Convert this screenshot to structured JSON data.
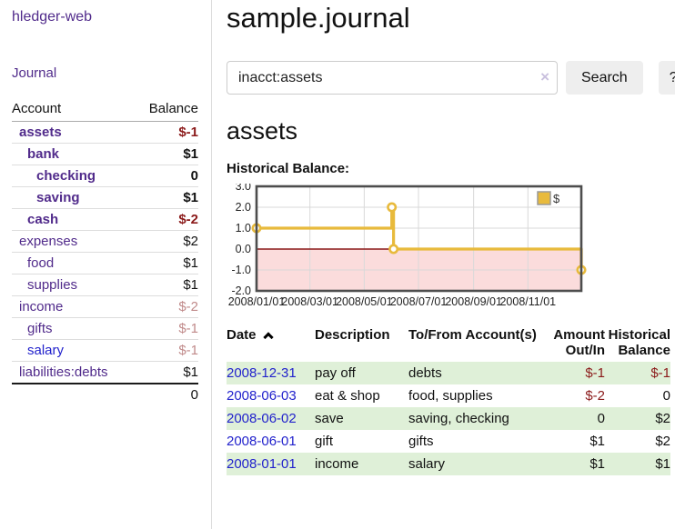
{
  "colors": {
    "link_purple": "#512b8b",
    "link_blue": "#2222cc",
    "negative_strong": "#8b1a1a",
    "negative_muted": "#c08a8a",
    "row_green": "#dff0d8",
    "chart_line": "#e8ba3c",
    "chart_negative_fill": "#fbdcdc",
    "chart_zero_line": "#8b1a1a",
    "chart_grid": "#d9d9d9",
    "chart_border": "#4d4d4d",
    "button_bg": "#eeeeee"
  },
  "sidebar": {
    "brand": "hledger-web",
    "journal_label": "Journal",
    "accounts_table": {
      "headers": [
        "Account",
        "Balance"
      ],
      "rows": [
        {
          "account": "assets",
          "depth": 1,
          "bold": true,
          "balance": "$-1",
          "neg": "strong"
        },
        {
          "account": "bank",
          "depth": 2,
          "bold": true,
          "balance": "$1",
          "neg": "none"
        },
        {
          "account": "checking",
          "depth": 3,
          "bold": true,
          "balance": "0",
          "neg": "none"
        },
        {
          "account": "saving",
          "depth": 3,
          "bold": true,
          "balance": "$1",
          "neg": "none"
        },
        {
          "account": "cash",
          "depth": 2,
          "bold": true,
          "balance": "$-2",
          "neg": "strong"
        },
        {
          "account": "expenses",
          "depth": 1,
          "bold": false,
          "balance": "$2",
          "neg": "none"
        },
        {
          "account": "food",
          "depth": 2,
          "bold": false,
          "balance": "$1",
          "neg": "none"
        },
        {
          "account": "supplies",
          "depth": 2,
          "bold": false,
          "balance": "$1",
          "neg": "none"
        },
        {
          "account": "income",
          "depth": 1,
          "bold": false,
          "balance": "$-2",
          "neg": "muted"
        },
        {
          "account": "gifts",
          "depth": 2,
          "bold": false,
          "balance": "$-1",
          "neg": "muted"
        },
        {
          "account": "salary",
          "depth": 2,
          "bold": false,
          "balance": "$-1",
          "neg": "muted",
          "link_color": "blue"
        },
        {
          "account": "liabilities:debts",
          "depth": 1,
          "bold": false,
          "balance": "$1",
          "neg": "none"
        }
      ],
      "total": "0"
    }
  },
  "main": {
    "title": "sample.journal",
    "search": {
      "value": "inacct:assets",
      "clear_icon": "×",
      "button_label": "Search",
      "help_label": "?"
    },
    "account_heading": "assets",
    "chart_label": "Historical Balance:",
    "register_table": {
      "headers": [
        "Date",
        "Description",
        "To/From Account(s)",
        "Amount Out/In",
        "Historical Balance"
      ],
      "rows": [
        {
          "date": "2008-12-31",
          "description": "pay off",
          "accounts": "debts",
          "amount": "$-1",
          "amount_neg": true,
          "balance": "$-1",
          "balance_neg": true
        },
        {
          "date": "2008-06-03",
          "description": "eat & shop",
          "accounts": "food, supplies",
          "amount": "$-2",
          "amount_neg": true,
          "balance": "0",
          "balance_neg": false
        },
        {
          "date": "2008-06-02",
          "description": "save",
          "accounts": "saving, checking",
          "amount": "0",
          "amount_neg": false,
          "balance": "$2",
          "balance_neg": false
        },
        {
          "date": "2008-06-01",
          "description": "gift",
          "accounts": "gifts",
          "amount": "$1",
          "amount_neg": false,
          "balance": "$2",
          "balance_neg": false
        },
        {
          "date": "2008-01-01",
          "description": "income",
          "accounts": "salary",
          "amount": "$1",
          "amount_neg": false,
          "balance": "$1",
          "balance_neg": false
        }
      ]
    }
  },
  "chart_data": {
    "type": "line",
    "step": true,
    "title": "Historical Balance",
    "legend": [
      {
        "label": "$",
        "color": "#e8ba3c"
      }
    ],
    "legend_position": "top-right",
    "grid": true,
    "ylim": [
      -2,
      3
    ],
    "yticks": [
      "3.0",
      "2.0",
      "1.0",
      "0.0",
      "-1.0",
      "-2.0"
    ],
    "ytick_values": [
      3,
      2,
      1,
      0,
      -1,
      -2
    ],
    "xtick_labels": [
      "2008/01/01",
      "2008/03/01",
      "2008/05/01",
      "2008/07/01",
      "2008/09/01",
      "2008/11/01"
    ],
    "xtick_days": [
      0,
      60,
      121,
      182,
      244,
      305
    ],
    "x_range_days": [
      0,
      365
    ],
    "points": [
      {
        "date": "2008-01-01",
        "day": 0,
        "value": 1
      },
      {
        "date": "2008-06-01",
        "day": 152,
        "value": 2
      },
      {
        "date": "2008-06-03",
        "day": 154,
        "value": 0
      },
      {
        "date": "2008-12-31",
        "day": 365,
        "value": -1
      }
    ],
    "negative_region_shaded": true
  }
}
